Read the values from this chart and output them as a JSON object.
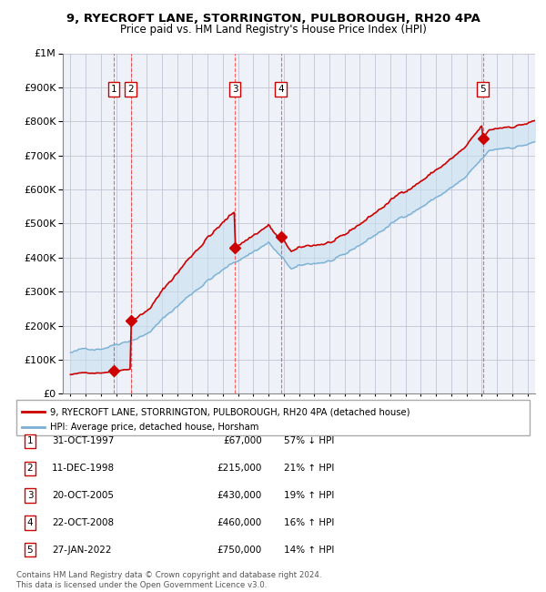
{
  "title": "9, RYECROFT LANE, STORRINGTON, PULBOROUGH, RH20 4PA",
  "subtitle": "Price paid vs. HM Land Registry's House Price Index (HPI)",
  "footer": "Contains HM Land Registry data © Crown copyright and database right 2024.\nThis data is licensed under the Open Government Licence v3.0.",
  "legend_property": "9, RYECROFT LANE, STORRINGTON, PULBOROUGH, RH20 4PA (detached house)",
  "legend_hpi": "HPI: Average price, detached house, Horsham",
  "sales": [
    {
      "num": 1,
      "date": "31-OCT-1997",
      "price": 67000,
      "hpi_rel": "57% ↓ HPI"
    },
    {
      "num": 2,
      "date": "11-DEC-1998",
      "price": 215000,
      "hpi_rel": "21% ↑ HPI"
    },
    {
      "num": 3,
      "date": "20-OCT-2005",
      "price": 430000,
      "hpi_rel": "19% ↑ HPI"
    },
    {
      "num": 4,
      "date": "22-OCT-2008",
      "price": 460000,
      "hpi_rel": "16% ↑ HPI"
    },
    {
      "num": 5,
      "date": "27-JAN-2022",
      "price": 750000,
      "hpi_rel": "14% ↑ HPI"
    }
  ],
  "sale_x": [
    1997.83,
    1998.95,
    2005.8,
    2008.81,
    2022.07
  ],
  "sale_prices": [
    67000,
    215000,
    430000,
    460000,
    750000
  ],
  "ylim": [
    0,
    1000000
  ],
  "xlim": [
    1994.5,
    2025.5
  ],
  "property_color": "#cc0000",
  "hpi_color": "#7aafd4",
  "shade_color": "#c8dff0",
  "background_color": "#ffffff",
  "plot_bg_color": "#eef2f8"
}
